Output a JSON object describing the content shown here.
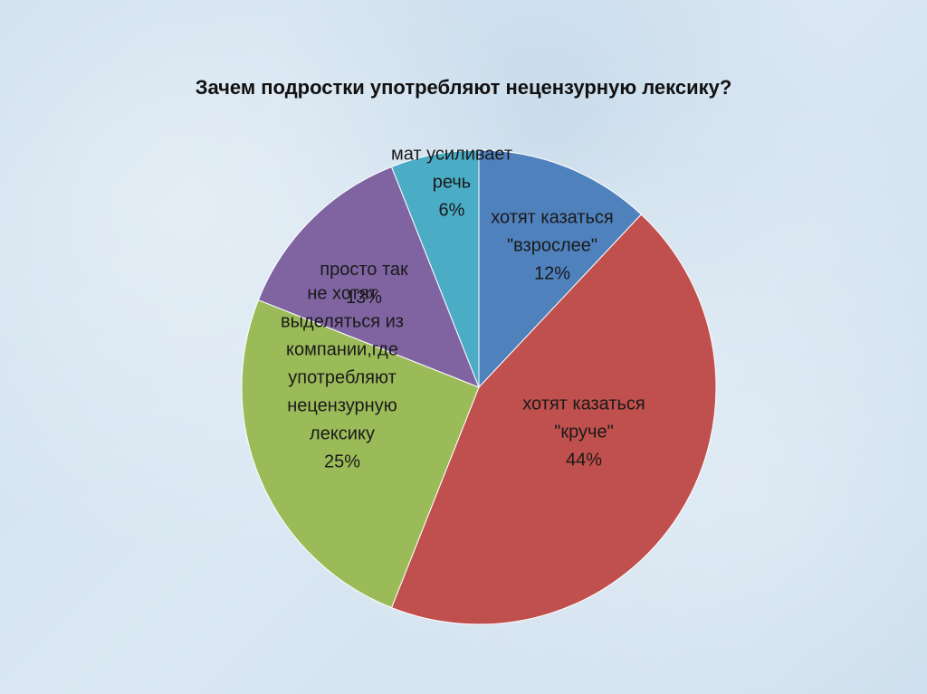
{
  "chart_data": {
    "type": "pie",
    "title": "Зачем подростки употребляют нецензурную лексику?",
    "start_angle_deg": 0,
    "slices": [
      {
        "label_lines": [
          "хотят казаться",
          "\"взрослее\"",
          "12%"
        ],
        "value": 12,
        "color": "#4f81bd"
      },
      {
        "label_lines": [
          "хотят казаться",
          "\"круче\"",
          "44%"
        ],
        "value": 44,
        "color": "#c0504d"
      },
      {
        "label_lines": [
          "не хотят",
          "выделяться из",
          "компании,где",
          "употребляют",
          "нецензурную",
          "лексику",
          "25%"
        ],
        "value": 25,
        "color": "#9bbb59"
      },
      {
        "label_lines": [
          "просто так",
          "13%"
        ],
        "value": 13,
        "color": "#8064a2"
      },
      {
        "label_lines": [
          "мат усиливает",
          "речь",
          "6%"
        ],
        "value": 6,
        "color": "#4bacc6"
      }
    ]
  }
}
